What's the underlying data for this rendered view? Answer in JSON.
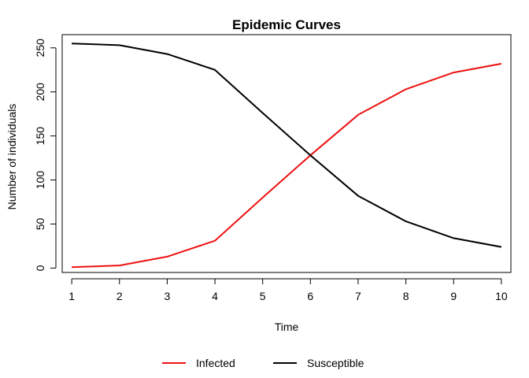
{
  "chart_data": {
    "type": "line",
    "title": "Epidemic Curves",
    "xlabel": "Time",
    "ylabel": "Number of individuals",
    "x": [
      1,
      2,
      3,
      4,
      5,
      6,
      7,
      8,
      9,
      10
    ],
    "xlim": [
      0.8,
      10.2
    ],
    "ylim": [
      -5,
      265
    ],
    "x_ticks": [
      1,
      2,
      3,
      4,
      5,
      6,
      7,
      8,
      9,
      10
    ],
    "y_ticks": [
      0,
      50,
      100,
      150,
      200,
      250
    ],
    "grid": false,
    "legend_position": "bottom",
    "series": [
      {
        "name": "Infected",
        "color": "#ee1111",
        "values": [
          1,
          3,
          13,
          31,
          80,
          128,
          174,
          203,
          222,
          232
        ]
      },
      {
        "name": "Susceptible",
        "color": "#000000",
        "values": [
          255,
          253,
          243,
          225,
          176,
          128,
          82,
          53,
          34,
          24
        ]
      }
    ]
  }
}
